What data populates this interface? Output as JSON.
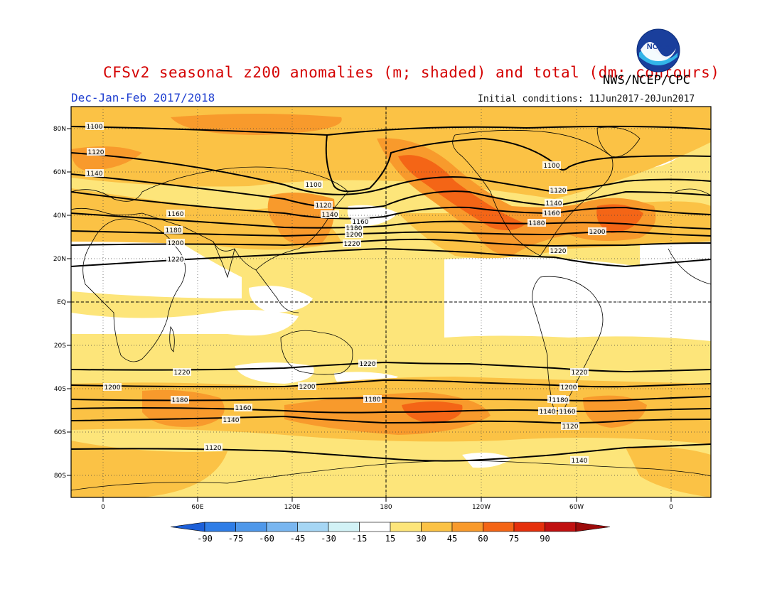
{
  "header": {
    "title": "CFSv2 seasonal z200 anomalies (m; shaded) and total (dm; contours)",
    "agency": "NWS/NCEP/CPC",
    "period": "Dec-Jan-Feb 2017/2018",
    "initial_conditions": "Initial conditions: 11Jun2017-20Jun2017",
    "logo_text": "NOAA"
  },
  "map": {
    "lat_labels": [
      "80N",
      "60N",
      "40N",
      "20N",
      "EQ",
      "20S",
      "40S",
      "60S",
      "80S"
    ],
    "lon_labels": [
      "0",
      "60E",
      "120E",
      "180",
      "120W",
      "60W",
      "0"
    ],
    "contour_levels_dm": [
      1100,
      1120,
      1140,
      1160,
      1180,
      1200,
      1220
    ],
    "contour_labels": [
      {
        "text": "1100"
      },
      {
        "text": "1120"
      },
      {
        "text": "1140"
      },
      {
        "text": "1160"
      },
      {
        "text": "1180"
      },
      {
        "text": "1200"
      },
      {
        "text": "1220"
      },
      {
        "text": "1100"
      },
      {
        "text": "1120"
      },
      {
        "text": "1140"
      },
      {
        "text": "1160"
      },
      {
        "text": "1180"
      },
      {
        "text": "1200"
      },
      {
        "text": "1220"
      },
      {
        "text": "1100"
      },
      {
        "text": "1120"
      },
      {
        "text": "1140"
      },
      {
        "text": "1160"
      },
      {
        "text": "1180"
      },
      {
        "text": "1200"
      },
      {
        "text": "1220"
      },
      {
        "text": "1220"
      },
      {
        "text": "1200"
      },
      {
        "text": "1180"
      },
      {
        "text": "1160"
      },
      {
        "text": "1140"
      },
      {
        "text": "1120"
      },
      {
        "text": "1220"
      },
      {
        "text": "1200"
      },
      {
        "text": "1180"
      },
      {
        "text": "1160"
      },
      {
        "text": "1140"
      },
      {
        "text": "1120"
      },
      {
        "text": "1220"
      },
      {
        "text": "1200"
      },
      {
        "text": "1180"
      },
      {
        "text": "1160"
      },
      {
        "text": "1140"
      }
    ]
  },
  "colorbar": {
    "labels": [
      "-90",
      "-75",
      "-60",
      "-45",
      "-30",
      "-15",
      "15",
      "30",
      "45",
      "60",
      "75",
      "90"
    ],
    "colors": [
      "#1c5fd8",
      "#2f7de6",
      "#4f98ea",
      "#79b6f0",
      "#a6d6f4",
      "#d2f2f6",
      "#ffffff",
      "#fde57a",
      "#fbc245",
      "#f89a2c",
      "#f46516",
      "#e5300c",
      "#c01010",
      "#9c0a0a"
    ]
  },
  "colors": {
    "ocean_fill": "#ffffff",
    "anom_15_30": "#fde57a",
    "anom_30_45": "#fbc245",
    "anom_45_60": "#f89a2c",
    "anom_60_75": "#f46516",
    "anom_75_90": "#e5300c",
    "title_red": "#d40000",
    "period_blue": "#1f3fd0"
  }
}
